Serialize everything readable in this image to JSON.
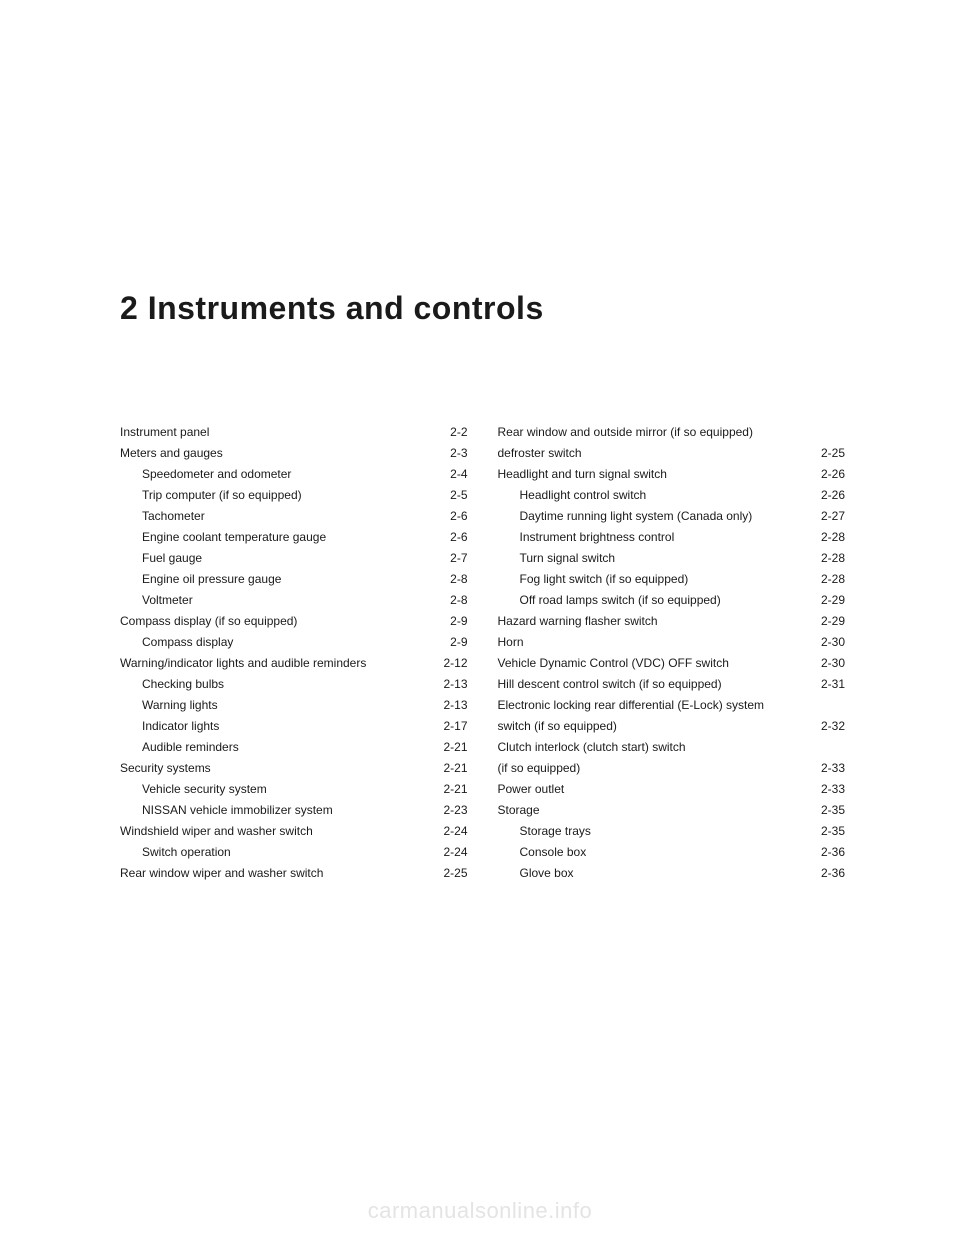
{
  "chapter": {
    "number": "2",
    "title": "Instruments and controls"
  },
  "toc": {
    "left": [
      {
        "label": "Instrument panel",
        "page": "2-2",
        "sub": false
      },
      {
        "label": "Meters and gauges",
        "page": "2-3",
        "sub": false
      },
      {
        "label": "Speedometer and odometer",
        "page": "2-4",
        "sub": true
      },
      {
        "label": "Trip computer (if so equipped)",
        "page": "2-5",
        "sub": true
      },
      {
        "label": "Tachometer",
        "page": "2-6",
        "sub": true
      },
      {
        "label": "Engine coolant temperature gauge",
        "page": "2-6",
        "sub": true
      },
      {
        "label": "Fuel gauge",
        "page": "2-7",
        "sub": true
      },
      {
        "label": "Engine oil pressure gauge",
        "page": "2-8",
        "sub": true
      },
      {
        "label": "Voltmeter",
        "page": "2-8",
        "sub": true
      },
      {
        "label": "Compass display (if so equipped)",
        "page": "2-9",
        "sub": false
      },
      {
        "label": "Compass display",
        "page": "2-9",
        "sub": true
      },
      {
        "label": "Warning/indicator lights and audible reminders",
        "page": "2-12",
        "sub": false
      },
      {
        "label": "Checking bulbs",
        "page": "2-13",
        "sub": true
      },
      {
        "label": "Warning lights",
        "page": "2-13",
        "sub": true
      },
      {
        "label": "Indicator lights",
        "page": "2-17",
        "sub": true
      },
      {
        "label": "Audible reminders",
        "page": "2-21",
        "sub": true
      },
      {
        "label": "Security systems",
        "page": "2-21",
        "sub": false
      },
      {
        "label": "Vehicle security system",
        "page": "2-21",
        "sub": true
      },
      {
        "label": "NISSAN vehicle immobilizer system",
        "page": "2-23",
        "sub": true
      },
      {
        "label": "Windshield wiper and washer switch",
        "page": "2-24",
        "sub": false
      },
      {
        "label": "Switch operation",
        "page": "2-24",
        "sub": true
      },
      {
        "label": "Rear window wiper and washer switch",
        "page": "2-25",
        "sub": false
      }
    ],
    "right": [
      {
        "label": "Rear window and outside mirror (if so equipped)",
        "page": "",
        "sub": false,
        "nodots": true
      },
      {
        "label": "defroster switch",
        "page": "2-25",
        "sub": false
      },
      {
        "label": "Headlight and turn signal switch",
        "page": "2-26",
        "sub": false
      },
      {
        "label": "Headlight control switch",
        "page": "2-26",
        "sub": true
      },
      {
        "label": "Daytime running light system (Canada only)",
        "page": "2-27",
        "sub": true
      },
      {
        "label": "Instrument brightness control",
        "page": "2-28",
        "sub": true
      },
      {
        "label": "Turn signal switch",
        "page": "2-28",
        "sub": true
      },
      {
        "label": "Fog light switch (if so equipped)",
        "page": "2-28",
        "sub": true
      },
      {
        "label": "Off road lamps switch (if so equipped)",
        "page": "2-29",
        "sub": true
      },
      {
        "label": "Hazard warning flasher switch",
        "page": "2-29",
        "sub": false
      },
      {
        "label": "Horn",
        "page": "2-30",
        "sub": false
      },
      {
        "label": "Vehicle Dynamic Control (VDC) OFF switch",
        "page": "2-30",
        "sub": false
      },
      {
        "label": "Hill descent control switch (if so equipped)",
        "page": "2-31",
        "sub": false
      },
      {
        "label": "Electronic locking rear differential (E-Lock) system",
        "page": "",
        "sub": false,
        "nodots": true
      },
      {
        "label": "switch (if so equipped)",
        "page": "2-32",
        "sub": false
      },
      {
        "label": "Clutch interlock (clutch start) switch",
        "page": "",
        "sub": false,
        "nodots": true
      },
      {
        "label": "(if so equipped)",
        "page": "2-33",
        "sub": false
      },
      {
        "label": "Power outlet",
        "page": "2-33",
        "sub": false
      },
      {
        "label": "Storage",
        "page": "2-35",
        "sub": false
      },
      {
        "label": "Storage trays",
        "page": "2-35",
        "sub": true
      },
      {
        "label": "Console box",
        "page": "2-36",
        "sub": true
      },
      {
        "label": "Glove box",
        "page": "2-36",
        "sub": true
      }
    ]
  },
  "watermark": "carmanualsonline.info"
}
